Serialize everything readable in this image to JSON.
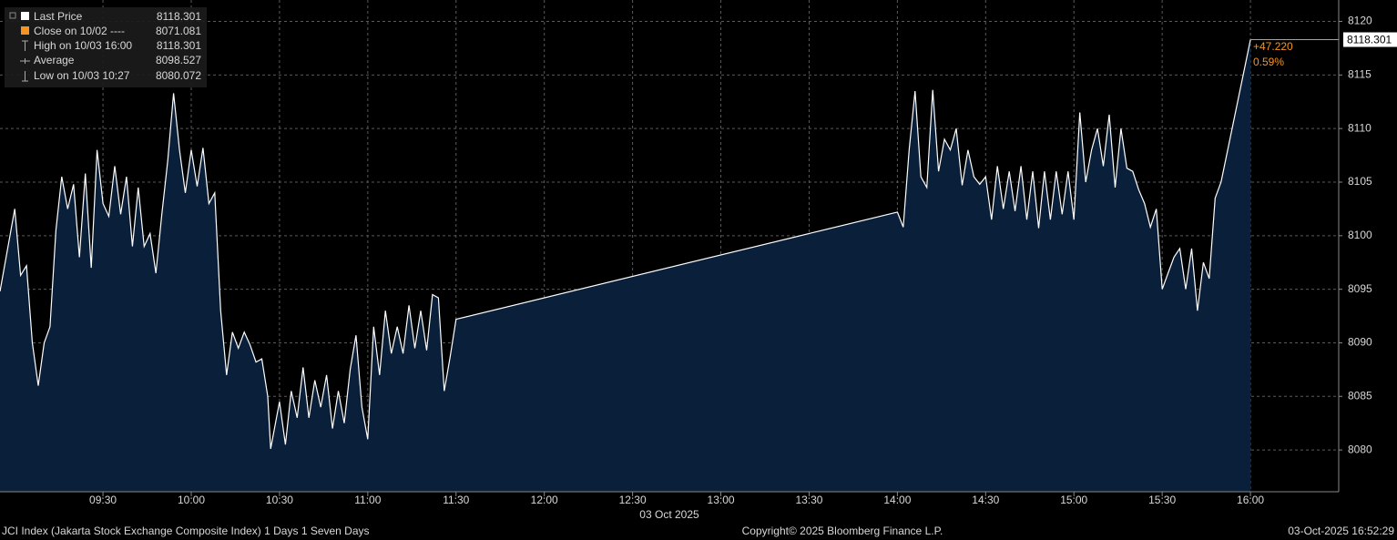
{
  "chart_data": {
    "type": "area",
    "legend": [
      {
        "label": "Last Price",
        "value": 8118.301
      },
      {
        "label": "Close on 10/02 ----",
        "value": 8071.081
      },
      {
        "label": "High on 10/03 16:00",
        "value": 8118.301
      },
      {
        "label": "Average",
        "value": 8098.527
      },
      {
        "label": "Low on 10/03 10:27",
        "value": 8080.072
      }
    ],
    "last_price_tag": 8118.301,
    "annotations": [
      "+47.220",
      "0.59%"
    ],
    "xlabel": "03 Oct 2025",
    "footer": [
      "JCI Index (Jakarta Stock Exchange Composite Index) 1 Days 1 Seven Days",
      "Copyright© 2025 Bloomberg Finance L.P.",
      "03-Oct-2025 16:52:29"
    ],
    "xlim": [
      "08:55",
      "16:30"
    ],
    "xticks": [
      "09:30",
      "10:00",
      "10:30",
      "11:00",
      "11:30",
      "12:00",
      "12:30",
      "13:00",
      "13:30",
      "14:00",
      "14:30",
      "15:00",
      "15:30",
      "16:00"
    ],
    "ylim": [
      8076.1,
      8122.0
    ],
    "yticks": [
      8080,
      8085,
      8090,
      8095,
      8100,
      8105,
      8110,
      8115,
      8120
    ],
    "grid": true,
    "x": [
      "08:55",
      "09:00",
      "09:02",
      "09:04",
      "09:06",
      "09:08",
      "09:10",
      "09:12",
      "09:14",
      "09:16",
      "09:18",
      "09:20",
      "09:22",
      "09:24",
      "09:26",
      "09:28",
      "09:30",
      "09:32",
      "09:34",
      "09:36",
      "09:38",
      "09:40",
      "09:42",
      "09:44",
      "09:46",
      "09:48",
      "09:50",
      "09:52",
      "09:54",
      "09:56",
      "09:58",
      "10:00",
      "10:02",
      "10:04",
      "10:06",
      "10:08",
      "10:10",
      "10:12",
      "10:14",
      "10:16",
      "10:18",
      "10:20",
      "10:22",
      "10:24",
      "10:26",
      "10:27",
      "10:30",
      "10:32",
      "10:34",
      "10:36",
      "10:38",
      "10:40",
      "10:42",
      "10:44",
      "10:46",
      "10:48",
      "10:50",
      "10:52",
      "10:54",
      "10:56",
      "10:58",
      "11:00",
      "11:02",
      "11:04",
      "11:06",
      "11:08",
      "11:10",
      "11:12",
      "11:14",
      "11:16",
      "11:18",
      "11:20",
      "11:22",
      "11:24",
      "11:26",
      "11:28",
      "11:30",
      "14:00",
      "14:02",
      "14:04",
      "14:06",
      "14:08",
      "14:10",
      "14:12",
      "14:14",
      "14:16",
      "14:18",
      "14:20",
      "14:22",
      "14:24",
      "14:26",
      "14:28",
      "14:30",
      "14:32",
      "14:34",
      "14:36",
      "14:38",
      "14:40",
      "14:42",
      "14:44",
      "14:46",
      "14:48",
      "14:50",
      "14:52",
      "14:54",
      "14:56",
      "14:58",
      "15:00",
      "15:02",
      "15:04",
      "15:06",
      "15:08",
      "15:10",
      "15:12",
      "15:14",
      "15:16",
      "15:18",
      "15:20",
      "15:22",
      "15:24",
      "15:26",
      "15:28",
      "15:30",
      "15:32",
      "15:34",
      "15:36",
      "15:38",
      "15:40",
      "15:42",
      "15:44",
      "15:46",
      "15:48",
      "15:50",
      "16:00"
    ],
    "series": [
      {
        "name": "Last Price",
        "color": "#ffffff",
        "fill": "#0a1f3a",
        "values": [
          8094.8,
          8102.5,
          8096.3,
          8097.2,
          8090,
          8086,
          8090,
          8091.5,
          8100.5,
          8105.5,
          8102.5,
          8104.8,
          8098,
          8105.8,
          8097,
          8108,
          8103,
          8101.8,
          8106.5,
          8102,
          8105.5,
          8099,
          8104.5,
          8099,
          8100.2,
          8096.5,
          8102,
          8107,
          8113.3,
          8108,
          8104,
          8108,
          8104.6,
          8108.2,
          8103,
          8104,
          8093,
          8087,
          8091,
          8089.5,
          8091,
          8089.8,
          8088.2,
          8088.5,
          8085,
          8080.1,
          8084.5,
          8080.5,
          8085.5,
          8083,
          8087.7,
          8083,
          8086.5,
          8084,
          8087,
          8082,
          8085.5,
          8082.5,
          8087.5,
          8090.7,
          8084,
          8081,
          8091.5,
          8087,
          8093,
          8089,
          8091.5,
          8089,
          8093.5,
          8089.5,
          8093,
          8089.3,
          8094.5,
          8094.2,
          8085.5,
          8088.7,
          8092.2,
          8102.2,
          8100.8,
          8108,
          8113.5,
          8105.5,
          8104.5,
          8113.6,
          8106,
          8109,
          8108,
          8110,
          8104.7,
          8108,
          8105.5,
          8104.8,
          8105.5,
          8101.5,
          8106.5,
          8102.5,
          8106,
          8102.3,
          8106.5,
          8101.5,
          8106,
          8100.7,
          8106,
          8101.5,
          8106,
          8102,
          8106,
          8101.5,
          8111.5,
          8105,
          8108,
          8110,
          8106.5,
          8111.3,
          8104.5,
          8110,
          8106.3,
          8106,
          8104.3,
          8103,
          8100.8,
          8102.5,
          8095,
          8096.5,
          8098,
          8098.8,
          8095,
          8098.8,
          8093,
          8097.5,
          8096,
          8103.5,
          8105,
          8118.301
        ]
      }
    ]
  }
}
